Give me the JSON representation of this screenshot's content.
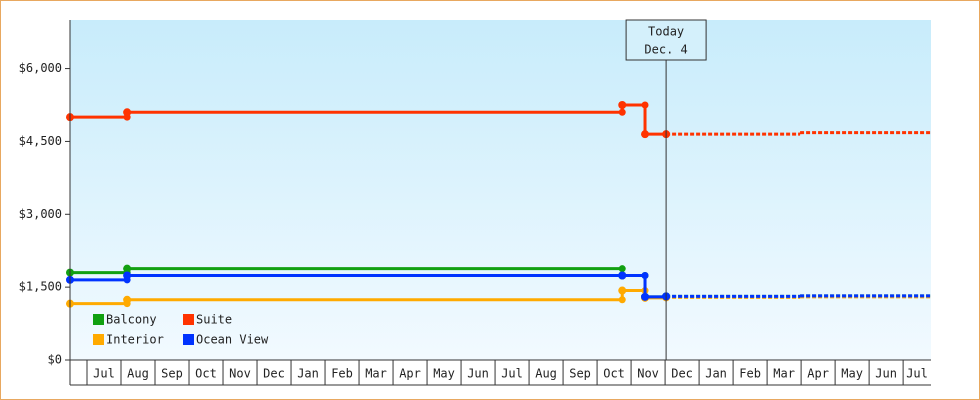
{
  "chart_data": {
    "type": "step-line",
    "ylim": [
      0,
      7000
    ],
    "yticks": [
      {
        "value": 0,
        "label": "$0"
      },
      {
        "value": 1500,
        "label": "$1,500"
      },
      {
        "value": 3000,
        "label": "$3,000"
      },
      {
        "value": 4500,
        "label": "$4,500"
      },
      {
        "value": 6000,
        "label": "$6,000"
      }
    ],
    "xlim": [
      0.5,
      25.82
    ],
    "xticks": [
      {
        "value": 1,
        "label": "Jul"
      },
      {
        "value": 2,
        "label": "Aug"
      },
      {
        "value": 3,
        "label": "Sep"
      },
      {
        "value": 4,
        "label": "Oct"
      },
      {
        "value": 5,
        "label": "Nov"
      },
      {
        "value": 6,
        "label": "Dec"
      },
      {
        "value": 7,
        "label": "Jan"
      },
      {
        "value": 8,
        "label": "Feb"
      },
      {
        "value": 9,
        "label": "Mar"
      },
      {
        "value": 10,
        "label": "Apr"
      },
      {
        "value": 11,
        "label": "May"
      },
      {
        "value": 12,
        "label": "Jun"
      },
      {
        "value": 13,
        "label": "Jul"
      },
      {
        "value": 14,
        "label": "Aug"
      },
      {
        "value": 15,
        "label": "Sep"
      },
      {
        "value": 16,
        "label": "Oct"
      },
      {
        "value": 17,
        "label": "Nov"
      },
      {
        "value": 18,
        "label": "Dec"
      },
      {
        "value": 19,
        "label": "Jan"
      },
      {
        "value": 20,
        "label": "Feb"
      },
      {
        "value": 21,
        "label": "Mar"
      },
      {
        "value": 22,
        "label": "Apr"
      },
      {
        "value": 23,
        "label": "May"
      },
      {
        "value": 24,
        "label": "Jun"
      },
      {
        "value": 25,
        "label": "Jul"
      }
    ],
    "today": {
      "x": 18.03,
      "label": "Today",
      "date": "Dec. 4"
    },
    "series": [
      {
        "name": "Balcony",
        "color": "#11a011",
        "x": [
          0.5,
          2.18,
          16.74,
          17.41,
          18.03,
          21.97
        ],
        "values": [
          1800,
          1880,
          1740,
          1300,
          1310,
          1320
        ]
      },
      {
        "name": "Suite",
        "color": "#ff3300",
        "x": [
          0.5,
          2.18,
          16.74,
          17.41,
          18.03,
          21.97
        ],
        "values": [
          5000,
          5100,
          5250,
          4650,
          4650,
          4680
        ]
      },
      {
        "name": "Interior",
        "color": "#ffaa00",
        "x": [
          0.5,
          2.18,
          16.74,
          17.41,
          18.03,
          21.97
        ],
        "values": [
          1160,
          1240,
          1430,
          1280,
          1290,
          1300
        ]
      },
      {
        "name": "Ocean View",
        "color": "#0033ff",
        "x": [
          0.5,
          2.18,
          16.74,
          17.41,
          18.03,
          21.97
        ],
        "values": [
          1650,
          1740,
          1740,
          1300,
          1310,
          1320
        ]
      }
    ]
  }
}
